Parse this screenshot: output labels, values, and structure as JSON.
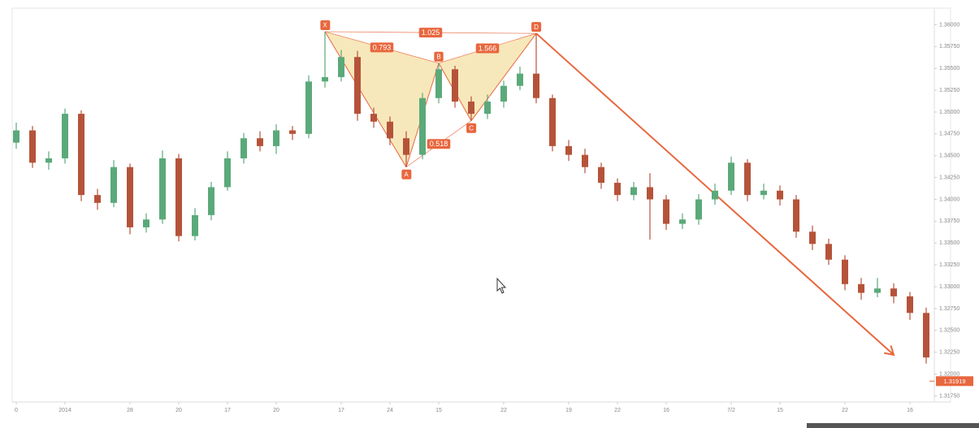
{
  "chart_data": {
    "type": "candlestick",
    "categories": [
      "0",
      null,
      null,
      "2014",
      null,
      null,
      null,
      "28",
      null,
      null,
      "20",
      null,
      null,
      "17",
      null,
      null,
      "20",
      null,
      null,
      null,
      "17",
      null,
      null,
      "24",
      null,
      null,
      "15",
      null,
      null,
      null,
      "22",
      null,
      null,
      null,
      "19",
      null,
      null,
      "22",
      null,
      null,
      "16",
      null,
      null,
      null,
      "7/2",
      null,
      null,
      "15",
      null,
      null,
      null,
      "22",
      null,
      null,
      null,
      "16",
      null
    ],
    "open": [
      1.3465,
      1.3479,
      1.3442,
      1.3447,
      1.3498,
      1.3405,
      1.3396,
      1.3437,
      1.3368,
      1.3377,
      1.3447,
      1.3358,
      1.3382,
      1.3414,
      1.3447,
      1.347,
      1.3461,
      1.3479,
      1.3475,
      1.3535,
      1.354,
      1.3563,
      1.3498,
      1.3489,
      1.347,
      1.3451,
      1.3516,
      1.3549,
      1.3512,
      1.3498,
      1.3512,
      1.353,
      1.3544,
      1.3516,
      1.3461,
      1.3451,
      1.3437,
      1.3419,
      1.3405,
      1.3414,
      1.34,
      1.3372,
      1.3377,
      1.34,
      1.341,
      1.3442,
      1.3405,
      1.341,
      1.34,
      1.3363,
      1.3349,
      1.3331,
      1.3303,
      1.3293,
      1.3298,
      1.3289,
      1.327
    ],
    "high": [
      1.3488,
      1.3484,
      1.3455,
      1.3504,
      1.3502,
      1.3412,
      1.3445,
      1.3441,
      1.3384,
      1.3456,
      1.3452,
      1.339,
      1.342,
      1.3455,
      1.3476,
      1.3478,
      1.3486,
      1.3484,
      1.3542,
      1.3592,
      1.3571,
      1.357,
      1.3505,
      1.3495,
      1.3478,
      1.3522,
      1.3556,
      1.3553,
      1.3518,
      1.352,
      1.3536,
      1.3552,
      1.359,
      1.352,
      1.3468,
      1.3458,
      1.3442,
      1.3424,
      1.342,
      1.343,
      1.3405,
      1.3384,
      1.3406,
      1.3418,
      1.3449,
      1.3446,
      1.3418,
      1.3416,
      1.3405,
      1.337,
      1.3355,
      1.3336,
      1.331,
      1.331,
      1.3304,
      1.3294,
      1.3276
    ],
    "low": [
      1.3458,
      1.3436,
      1.3434,
      1.3441,
      1.3398,
      1.3388,
      1.3391,
      1.336,
      1.3362,
      1.3372,
      1.3352,
      1.3353,
      1.3376,
      1.341,
      1.3441,
      1.3455,
      1.3452,
      1.3468,
      1.347,
      1.3528,
      1.3535,
      1.349,
      1.3482,
      1.3462,
      1.3437,
      1.3446,
      1.351,
      1.3505,
      1.349,
      1.3492,
      1.3505,
      1.3525,
      1.351,
      1.3455,
      1.3444,
      1.343,
      1.3412,
      1.3398,
      1.3399,
      1.3354,
      1.3365,
      1.3366,
      1.3371,
      1.3394,
      1.3405,
      1.3398,
      1.34,
      1.3393,
      1.3356,
      1.3342,
      1.3325,
      1.3296,
      1.3285,
      1.3288,
      1.3281,
      1.3262,
      1.3212
    ],
    "close": [
      1.3479,
      1.3442,
      1.3447,
      1.3498,
      1.3405,
      1.3396,
      1.3437,
      1.3368,
      1.3377,
      1.3447,
      1.3358,
      1.3382,
      1.3414,
      1.3447,
      1.347,
      1.3461,
      1.3479,
      1.3475,
      1.3535,
      1.354,
      1.3563,
      1.3498,
      1.3489,
      1.347,
      1.3451,
      1.3516,
      1.3549,
      1.3512,
      1.3498,
      1.3512,
      1.353,
      1.3544,
      1.3516,
      1.3461,
      1.3451,
      1.3437,
      1.3419,
      1.3405,
      1.3414,
      1.34,
      1.3372,
      1.3377,
      1.34,
      1.341,
      1.3442,
      1.3405,
      1.341,
      1.34,
      1.3363,
      1.3349,
      1.3331,
      1.3303,
      1.3293,
      1.3298,
      1.3289,
      1.327,
      1.3219
    ],
    "up_color": "#5ba97a",
    "down_color": "#b5533a",
    "ylim": [
      1.3168,
      1.3619
    ],
    "yticks": [
      {
        "value": 1.36,
        "label": "1.36000"
      },
      {
        "value": 1.3575,
        "label": "1.35750"
      },
      {
        "value": 1.355,
        "label": "1.35500"
      },
      {
        "value": 1.3525,
        "label": "1.35250"
      },
      {
        "value": 1.35,
        "label": "1.35000"
      },
      {
        "value": 1.3475,
        "label": "1.34750"
      },
      {
        "value": 1.345,
        "label": "1.34500"
      },
      {
        "value": 1.3425,
        "label": "1.34250"
      },
      {
        "value": 1.34,
        "label": "1.34000"
      },
      {
        "value": 1.3375,
        "label": "1.33750"
      },
      {
        "value": 1.335,
        "label": "1.33500"
      },
      {
        "value": 1.3325,
        "label": "1.33250"
      },
      {
        "value": 1.33,
        "label": "1.33000"
      },
      {
        "value": 1.3275,
        "label": "1.32750"
      },
      {
        "value": 1.325,
        "label": "1.32500"
      },
      {
        "value": 1.3225,
        "label": "1.32250"
      },
      {
        "value": 1.32,
        "label": "1.32000"
      },
      {
        "value": 1.3175,
        "label": "1.31750"
      }
    ],
    "last_price": 1.31919,
    "pattern": {
      "color": "#e8673e",
      "fill": "#f3dc96",
      "points": [
        {
          "label": "X",
          "candle": 19,
          "value": 1.3592
        },
        {
          "label": "A",
          "candle": 24,
          "value": 1.3437
        },
        {
          "label": "B",
          "candle": 26,
          "value": 1.3556
        },
        {
          "label": "C",
          "candle": 28,
          "value": 1.349
        },
        {
          "label": "D",
          "candle": 32,
          "value": 1.359
        }
      ],
      "ratios": [
        {
          "from": 0,
          "to": 2,
          "value": 0.793
        },
        {
          "from": 2,
          "to": 4,
          "value": 1.566
        },
        {
          "from": 0,
          "to": 4,
          "value": 1.025
        },
        {
          "from": 1,
          "to": 3,
          "value": 0.518
        }
      ],
      "arrow": {
        "from": 4,
        "candle": 54,
        "value": 1.3222
      }
    }
  }
}
